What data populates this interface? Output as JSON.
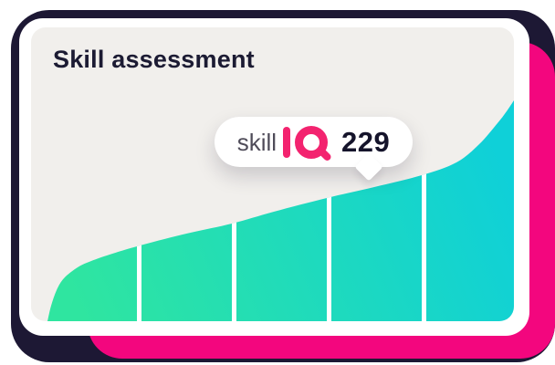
{
  "card": {
    "title": "Skill assessment"
  },
  "badge": {
    "brand_prefix": "skill",
    "brand_logo": "IQ",
    "score": "229"
  },
  "colors": {
    "background_shadow": "#1d1834",
    "background_pink": "#f3067e",
    "card_white": "#ffffff",
    "panel_gray": "#f1efec",
    "title_text": "#1c1b33",
    "skill_text": "#4f4c59",
    "logo_pink": "#f3236f",
    "score_text": "#15142b",
    "gradient_start": "#2fe5a0",
    "gradient_end": "#0fd0d8"
  },
  "chart_data": {
    "type": "area",
    "title": "Skill IQ distribution curve",
    "description": "S-shaped cumulative skill distribution filled with a green-to-cyan gradient, divided into 5 quintile segments by white vertical lines; badge marks score 229 near the upper quintiles",
    "marker_value": 229,
    "x_range": [
      0,
      529
    ],
    "y_range": [
      0,
      322
    ],
    "curve_points": [
      [
        18,
        322
      ],
      [
        22,
        305
      ],
      [
        28,
        288
      ],
      [
        36,
        275
      ],
      [
        51,
        263
      ],
      [
        66,
        256
      ],
      [
        86,
        249
      ],
      [
        116,
        240
      ],
      [
        166,
        227
      ],
      [
        220,
        215
      ],
      [
        266,
        202
      ],
      [
        324,
        187
      ],
      [
        376,
        175
      ],
      [
        428,
        162
      ],
      [
        466,
        148
      ],
      [
        491,
        128
      ],
      [
        511,
        105
      ],
      [
        521,
        92
      ],
      [
        529,
        80
      ]
    ],
    "divider_x": [
      116,
      220,
      324,
      428
    ],
    "divider_width": 5,
    "gradient": [
      "#2fe5a0",
      "#0fd0d8"
    ],
    "grid": false,
    "legend": false
  }
}
